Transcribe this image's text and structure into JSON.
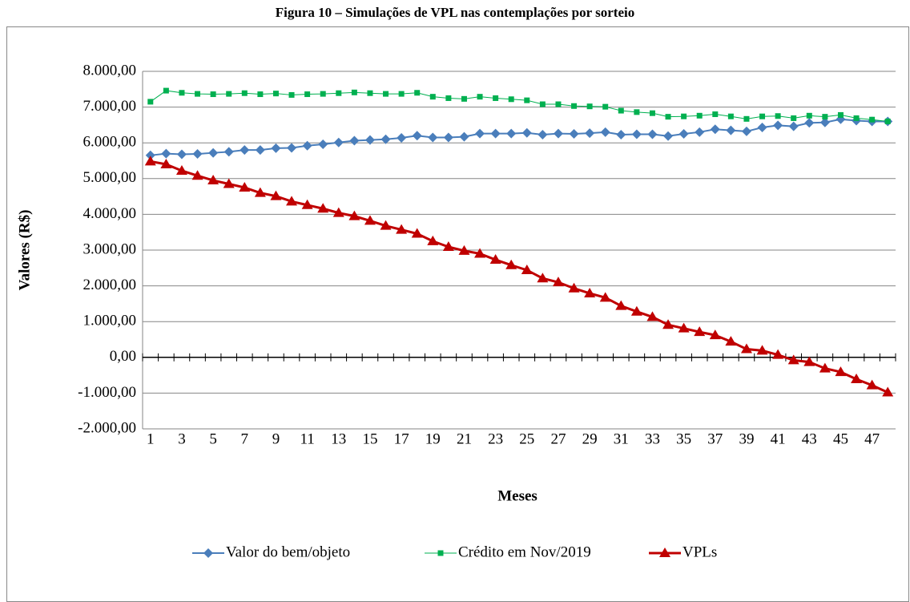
{
  "chart_data": {
    "type": "line",
    "title": "Figura 10 – Simulações de VPL nas contemplações por sorteio",
    "ylabel": "Valores (R$)",
    "xlabel": "Meses",
    "categories": [
      "1",
      null,
      "3",
      null,
      "5",
      null,
      "7",
      null,
      "9",
      null,
      "11",
      null,
      "13",
      null,
      "15",
      null,
      "17",
      null,
      "19",
      null,
      "21",
      null,
      "23",
      null,
      "25",
      null,
      "27",
      null,
      "29",
      null,
      "31",
      null,
      "33",
      null,
      "35",
      null,
      "37",
      null,
      "39",
      null,
      "41",
      null,
      "43",
      null,
      "45",
      null,
      "47",
      null
    ],
    "ylim": [
      -2000,
      8000
    ],
    "yticks": [
      {
        "value": -2000,
        "label": "-2.000,00"
      },
      {
        "value": -1000,
        "label": "-1.000,00"
      },
      {
        "value": 0,
        "label": "0,00"
      },
      {
        "value": 1000,
        "label": "1.000,00"
      },
      {
        "value": 2000,
        "label": "2.000,00"
      },
      {
        "value": 3000,
        "label": "3.000,00"
      },
      {
        "value": 4000,
        "label": "4.000,00"
      },
      {
        "value": 5000,
        "label": "5.000,00"
      },
      {
        "value": 6000,
        "label": "6.000,00"
      },
      {
        "value": 7000,
        "label": "7.000,00"
      },
      {
        "value": 8000,
        "label": "8.000,00"
      }
    ],
    "grid": true,
    "legend": "bottom",
    "series": [
      {
        "name": "Valor do bem/objeto",
        "color": "#4a7ebb",
        "marker": "diamond",
        "values": [
          5650,
          5700,
          5680,
          5690,
          5720,
          5750,
          5800,
          5800,
          5850,
          5860,
          5920,
          5960,
          6010,
          6060,
          6080,
          6100,
          6140,
          6200,
          6150,
          6150,
          6170,
          6260,
          6260,
          6260,
          6280,
          6230,
          6260,
          6250,
          6270,
          6300,
          6230,
          6240,
          6240,
          6190,
          6250,
          6300,
          6380,
          6350,
          6320,
          6430,
          6490,
          6460,
          6560,
          6570,
          6660,
          6620,
          6600,
          6600
        ]
      },
      {
        "name": "Crédito em Nov/2019",
        "color": "#00b050",
        "marker": "square",
        "values": [
          7150,
          7460,
          7400,
          7370,
          7360,
          7370,
          7390,
          7360,
          7380,
          7340,
          7360,
          7370,
          7390,
          7410,
          7390,
          7370,
          7370,
          7400,
          7290,
          7250,
          7230,
          7290,
          7250,
          7220,
          7190,
          7080,
          7080,
          7030,
          7020,
          7010,
          6900,
          6860,
          6830,
          6730,
          6740,
          6760,
          6800,
          6740,
          6670,
          6740,
          6750,
          6690,
          6760,
          6730,
          6780,
          6690,
          6650,
          6600
        ]
      },
      {
        "name": "VPLs",
        "color": "#c00000",
        "marker": "triangle",
        "values": [
          5480,
          5400,
          5220,
          5080,
          4950,
          4850,
          4750,
          4600,
          4510,
          4360,
          4260,
          4160,
          4040,
          3950,
          3820,
          3680,
          3570,
          3460,
          3250,
          3090,
          2980,
          2900,
          2730,
          2580,
          2440,
          2210,
          2100,
          1930,
          1790,
          1670,
          1440,
          1280,
          1130,
          910,
          810,
          710,
          620,
          440,
          230,
          190,
          70,
          -80,
          -130,
          -310,
          -410,
          -610,
          -780,
          -980
        ]
      }
    ]
  }
}
